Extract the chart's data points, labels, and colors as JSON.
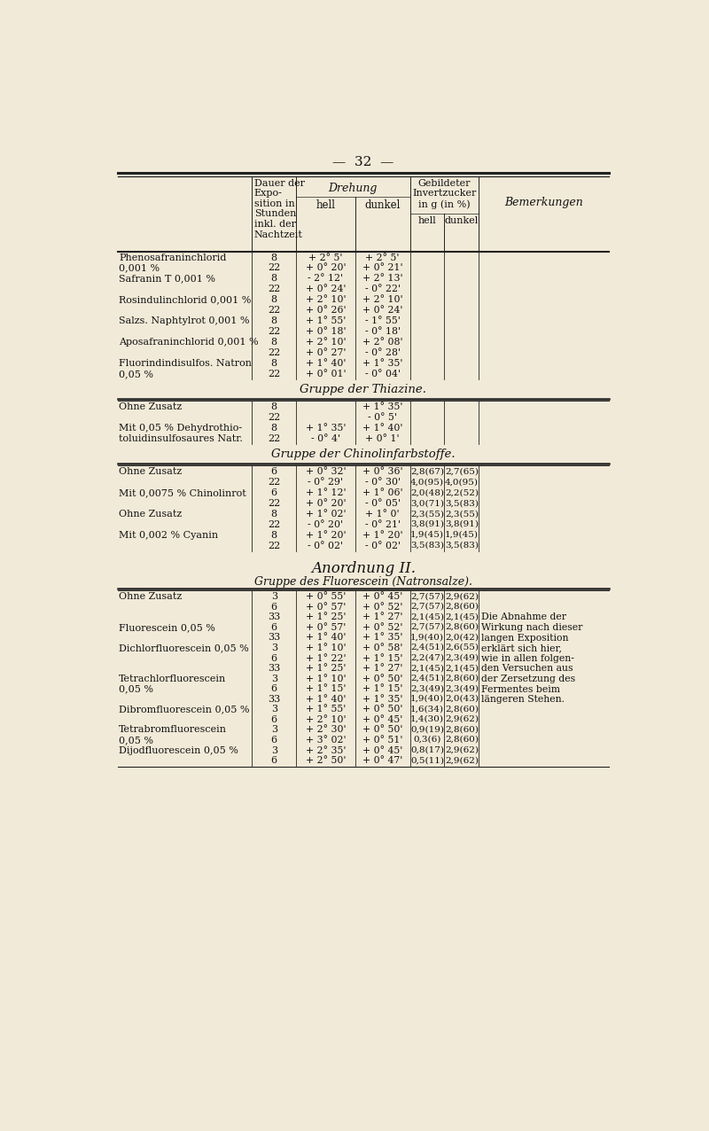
{
  "page_number": "32",
  "bg_color": "#f2ead8",
  "text_color": "#111111",
  "header_col1": "Dauer der\nExpo-\nsition in\nStunden\ninkl. der\nNachtzeit",
  "header_drehung": "Drehung",
  "header_hell": "hell",
  "header_dunkel": "dunkel",
  "header_gebildeter": "Gebildeter\nInvertzucker\nin g (in %)",
  "header_inv_hell": "hell",
  "header_inv_dunkel": "dunkel",
  "header_bemerkungen": "Bemerkungen",
  "section1_rows": [
    [
      "Phenosafraninchlorid",
      "8",
      "+ 2° 5'",
      "+ 2° 5'",
      "",
      ""
    ],
    [
      "0,001 %",
      "22",
      "+ 0° 20'",
      "+ 0° 21'",
      "",
      ""
    ],
    [
      "Safranin T 0,001 %",
      "8",
      "- 2° 12'",
      "+ 2° 13'",
      "",
      ""
    ],
    [
      "",
      "22",
      "+ 0° 24'",
      "- 0° 22'",
      "",
      ""
    ],
    [
      "Rosindulinchlorid 0,001 %",
      "8",
      "+ 2° 10'",
      "+ 2° 10'",
      "",
      ""
    ],
    [
      "",
      "22",
      "+ 0° 26'",
      "+ 0° 24'",
      "",
      ""
    ],
    [
      "Salzs. Naphtylrot 0,001 %",
      "8",
      "+ 1° 55'",
      "- 1° 55'",
      "",
      ""
    ],
    [
      "",
      "22",
      "+ 0° 18'",
      "- 0° 18'",
      "",
      ""
    ],
    [
      "Aposafraninchlorid 0,001 %",
      "8",
      "+ 2° 10'",
      "+ 2° 08'",
      "",
      ""
    ],
    [
      "",
      "22",
      "+ 0° 27'",
      "- 0° 28'",
      "",
      ""
    ],
    [
      "Fluorindindisulfos. Natron",
      "8",
      "+ 1° 40'",
      "+ 1° 35'",
      "",
      ""
    ],
    [
      "0,05 %",
      "22",
      "+ 0° 01'",
      "- 0° 04'",
      "",
      ""
    ]
  ],
  "section1_title": "Gruppe der Thiazine.",
  "section2_rows": [
    [
      "Ohne Zusatz",
      "8",
      "",
      "+ 1° 35'",
      "",
      ""
    ],
    [
      "",
      "22",
      "",
      "- 0° 5'",
      "",
      ""
    ],
    [
      "Mit 0,05 % Dehydrothio-",
      "8",
      "+ 1° 35'",
      "+ 1° 40'",
      "",
      ""
    ],
    [
      "toluidinsulfosaures Natr.",
      "22",
      "- 0° 4'",
      "+ 0° 1'",
      "",
      ""
    ]
  ],
  "section2_title": "Gruppe der Chinolinfarbstoffe.",
  "section3_rows": [
    [
      "Ohne Zusatz",
      "6",
      "+ 0° 32'",
      "+ 0° 36'",
      "2,8(67)",
      "2,7(65)"
    ],
    [
      "",
      "22",
      "- 0° 29'",
      "- 0° 30'",
      "4,0(95)",
      "4,0(95)"
    ],
    [
      "Mit 0,0075 % Chinolinrot",
      "6",
      "+ 1° 12'",
      "+ 1° 06'",
      "2,0(48)",
      "2,2(52)"
    ],
    [
      "",
      "22",
      "+ 0° 20'",
      "- 0° 05'",
      "3,0(71)",
      "3,5(83)"
    ],
    [
      "Ohne Zusatz",
      "8",
      "+ 1° 02'",
      "+ 1° 0'",
      "2,3(55)",
      "2,3(55)"
    ],
    [
      "",
      "22",
      "- 0° 20'",
      "- 0° 21'",
      "3,8(91)",
      "3,8(91)"
    ],
    [
      "Mit 0,002 % Cyanin",
      "8",
      "+ 1° 20'",
      "+ 1° 20'",
      "1,9(45)",
      "1,9(45)"
    ],
    [
      "",
      "22",
      "- 0° 02'",
      "- 0° 02'",
      "3,5(83)",
      "3,5(83)"
    ]
  ],
  "anordnung_title": "Anordnung II.",
  "section3b_title": "Gruppe des Fluorescein (Natronsalze).",
  "section4_rows": [
    [
      "Ohne Zusatz",
      "3",
      "+ 0° 55'",
      "+ 0° 45'",
      "2,7(57)",
      "2,9(62)"
    ],
    [
      "",
      "6",
      "+ 0° 57'",
      "+ 0° 52'",
      "2,7(57)",
      "2,8(60)"
    ],
    [
      "",
      "33",
      "+ 1° 25'",
      "+ 1° 27'",
      "2,1(45)",
      "2,1(45)"
    ],
    [
      "Fluorescein 0,05 %",
      "6",
      "+ 0° 57'",
      "+ 0° 52'",
      "2,7(57)",
      "2,8(60)"
    ],
    [
      "",
      "33",
      "+ 1° 40'",
      "+ 1° 35'",
      "1,9(40)",
      "2,0(42)"
    ],
    [
      "Dichlorfluorescein 0,05 %",
      "3",
      "+ 1° 10'",
      "+ 0° 58'",
      "2,4(51)",
      "2,6(55)"
    ],
    [
      "",
      "6",
      "+ 1° 22'",
      "+ 1° 15'",
      "2,2(47)",
      "2,3(49)"
    ],
    [
      "",
      "33",
      "+ 1° 25'",
      "+ 1° 27'",
      "2,1(45)",
      "2,1(45)"
    ],
    [
      "Tetrachlorfluorescein",
      "3",
      "+ 1° 10'",
      "+ 0° 50'",
      "2,4(51)",
      "2,8(60)"
    ],
    [
      "0,05 %",
      "6",
      "+ 1° 15'",
      "+ 1° 15'",
      "2,3(49)",
      "2,3(49)"
    ],
    [
      "",
      "33",
      "+ 1° 40'",
      "+ 1° 35'",
      "1,9(40)",
      "2,0(43)"
    ],
    [
      "Dibromfluorescein 0,05 %",
      "3",
      "+ 1° 55'",
      "+ 0° 50'",
      "1,6(34)",
      "2,8(60)"
    ],
    [
      "",
      "6",
      "+ 2° 10'",
      "+ 0° 45'",
      "1,4(30)",
      "2,9(62)"
    ],
    [
      "Tetrabromfluorescein",
      "3",
      "+ 2° 30'",
      "+ 0° 50'",
      "0,9(19)",
      "2,8(60)"
    ],
    [
      "0,05 %",
      "6",
      "+ 3° 02'",
      "+ 0° 51'",
      "0,3(6)",
      "2,8(60)"
    ],
    [
      "Dijodfluorescein 0,05 %",
      "3",
      "+ 2° 35'",
      "+ 0° 45'",
      "0,8(17)",
      "2,9(62)"
    ],
    [
      "",
      "6",
      "+ 2° 50'",
      "+ 0° 47'",
      "0,5(11)",
      "2,9(62)"
    ]
  ],
  "bemerkungen_text": "Die Abnahme der\nWirkung nach dieser\nlangen Exposition\nerklärt sich hier,\nwie in allen folgen-\nden Versuchen aus\nder Zersetzung des\nFermentes beim\nlängeren Stehen."
}
